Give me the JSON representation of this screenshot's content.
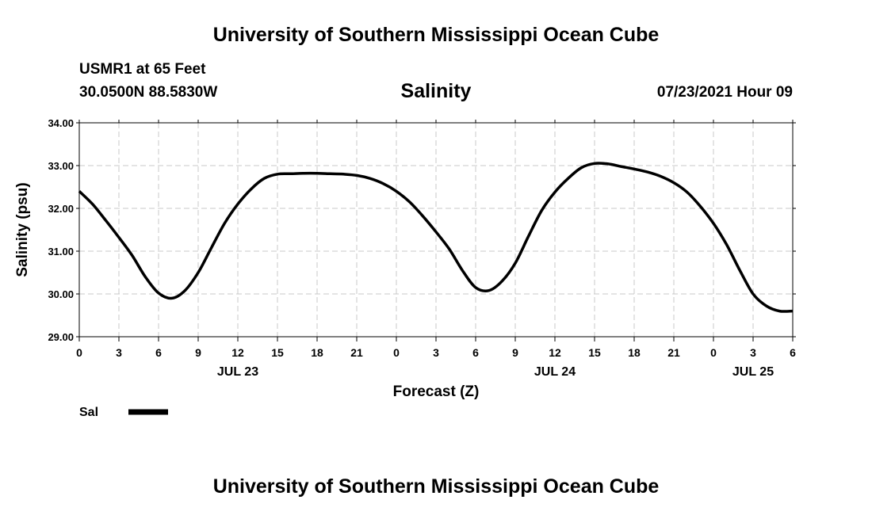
{
  "header": {
    "title": "University of Southern Mississippi Ocean Cube",
    "station": "USMR1 at 65 Feet",
    "coords": "30.0500N  88.5830W",
    "parameter": "Salinity",
    "timestamp": "07/23/2021 Hour 09"
  },
  "footer": {
    "title": "University of Southern Mississippi Ocean Cube"
  },
  "colors": {
    "line": "#000000",
    "grid": "#c8c8c8"
  },
  "chart_data": {
    "type": "line",
    "title": "Salinity",
    "xlabel": "Forecast (Z)",
    "ylabel": "Salinity (psu)",
    "ylim": [
      29.0,
      34.0
    ],
    "yticks": [
      "29.00",
      "30.00",
      "31.00",
      "32.00",
      "33.00",
      "34.00"
    ],
    "xlim": [
      "07/23/2021 00Z",
      "07/25/2021 06Z"
    ],
    "xticks": [
      "0",
      "3",
      "6",
      "9",
      "12",
      "15",
      "18",
      "21",
      "0",
      "3",
      "6",
      "9",
      "12",
      "15",
      "18",
      "21",
      "0",
      "3",
      "6"
    ],
    "date_labels": [
      {
        "label": "JUL 23",
        "time": "07/23/2021 12Z"
      },
      {
        "label": "JUL 24",
        "time": "07/24/2021 12Z"
      },
      {
        "label": "JUL 25",
        "time": "07/25/2021 03Z"
      }
    ],
    "grid": true,
    "legend": "bottom-left",
    "series": [
      {
        "name": "Sal",
        "x": [
          "07/23/2021 00Z",
          "07/23/2021 01Z",
          "07/23/2021 02Z",
          "07/23/2021 03Z",
          "07/23/2021 04Z",
          "07/23/2021 05Z",
          "07/23/2021 06Z",
          "07/23/2021 07Z",
          "07/23/2021 08Z",
          "07/23/2021 09Z",
          "07/23/2021 10Z",
          "07/23/2021 11Z",
          "07/23/2021 12Z",
          "07/23/2021 13Z",
          "07/23/2021 14Z",
          "07/23/2021 15Z",
          "07/23/2021 16Z",
          "07/23/2021 17Z",
          "07/23/2021 18Z",
          "07/23/2021 19Z",
          "07/23/2021 20Z",
          "07/23/2021 21Z",
          "07/23/2021 22Z",
          "07/23/2021 23Z",
          "07/24/2021 00Z",
          "07/24/2021 01Z",
          "07/24/2021 02Z",
          "07/24/2021 03Z",
          "07/24/2021 04Z",
          "07/24/2021 05Z",
          "07/24/2021 06Z",
          "07/24/2021 07Z",
          "07/24/2021 08Z",
          "07/24/2021 09Z",
          "07/24/2021 10Z",
          "07/24/2021 11Z",
          "07/24/2021 12Z",
          "07/24/2021 13Z",
          "07/24/2021 14Z",
          "07/24/2021 15Z",
          "07/24/2021 16Z",
          "07/24/2021 17Z",
          "07/24/2021 18Z",
          "07/24/2021 19Z",
          "07/24/2021 20Z",
          "07/24/2021 21Z",
          "07/24/2021 22Z",
          "07/24/2021 23Z",
          "07/25/2021 00Z",
          "07/25/2021 01Z",
          "07/25/2021 02Z",
          "07/25/2021 03Z",
          "07/25/2021 04Z",
          "07/25/2021 05Z",
          "07/25/2021 06Z"
        ],
        "values": [
          32.4,
          32.1,
          31.72,
          31.32,
          30.9,
          30.4,
          30.02,
          29.9,
          30.08,
          30.5,
          31.08,
          31.65,
          32.1,
          32.45,
          32.7,
          32.8,
          32.81,
          32.82,
          32.82,
          32.81,
          32.8,
          32.77,
          32.7,
          32.58,
          32.4,
          32.15,
          31.82,
          31.45,
          31.05,
          30.55,
          30.15,
          30.08,
          30.3,
          30.72,
          31.35,
          31.95,
          32.38,
          32.7,
          32.95,
          33.05,
          33.04,
          32.98,
          32.92,
          32.85,
          32.75,
          32.6,
          32.38,
          32.05,
          31.65,
          31.15,
          30.55,
          30.0,
          29.72,
          29.6,
          29.6
        ]
      }
    ]
  }
}
